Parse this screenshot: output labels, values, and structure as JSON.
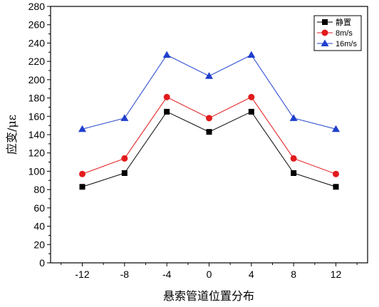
{
  "chart_data": {
    "type": "line",
    "title": "",
    "xlabel": "悬索管道位置分布",
    "ylabel": "应变/με",
    "x": [
      -12,
      -8,
      -4,
      0,
      4,
      8,
      12
    ],
    "xlim": [
      -15,
      15
    ],
    "ylim": [
      0,
      280
    ],
    "x_ticks": [
      "-12",
      "-8",
      "-4",
      "0",
      "4",
      "8",
      "12"
    ],
    "y_ticks": [
      "0",
      "20",
      "40",
      "60",
      "80",
      "100",
      "120",
      "140",
      "160",
      "180",
      "200",
      "220",
      "240",
      "260",
      "280"
    ],
    "grid": false,
    "legend_position": "top-right",
    "series": [
      {
        "name": "静置",
        "color": "#000000",
        "marker": "square",
        "values": [
          83,
          98,
          165,
          143,
          165,
          98,
          83
        ]
      },
      {
        "name": "8m/s",
        "color": "#e31a1c",
        "marker": "circle",
        "values": [
          97,
          114,
          181,
          158,
          181,
          114,
          97
        ]
      },
      {
        "name": "16m/s",
        "color": "#1f3fcc",
        "marker": "triangle",
        "values": [
          146,
          158,
          227,
          204,
          227,
          158,
          146
        ]
      }
    ]
  }
}
